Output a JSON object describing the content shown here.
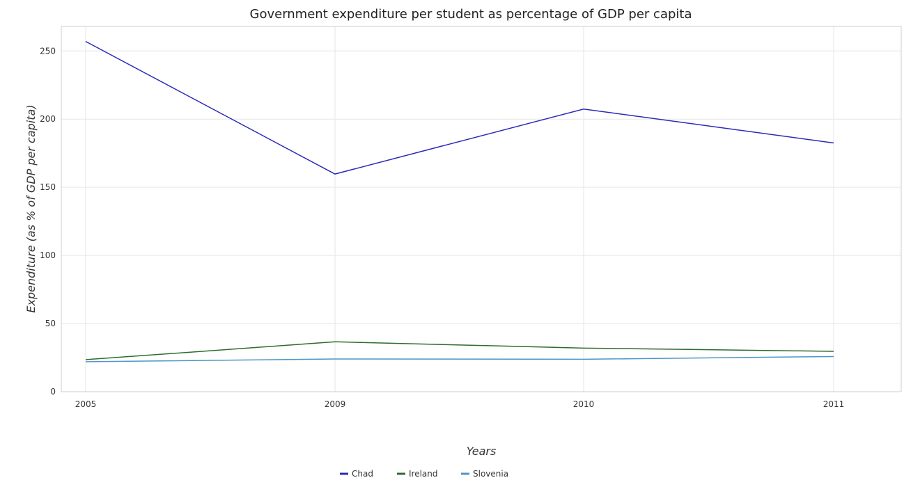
{
  "chart_data": {
    "type": "line",
    "title": "Government expenditure per student as percentage of GDP per capita",
    "xlabel": "Years",
    "ylabel": "Expenditure (as % of GDP per capita)",
    "categories": [
      "2005",
      "2009",
      "2010",
      "2011"
    ],
    "ylim": [
      0,
      268
    ],
    "yticks": [
      0,
      50,
      100,
      150,
      200,
      250
    ],
    "grid": true,
    "legend_position": "bottom",
    "series": [
      {
        "name": "Chad",
        "color": "#2a2ab8",
        "values": [
          257.0,
          159.7,
          207.4,
          182.5
        ]
      },
      {
        "name": "Ireland",
        "color": "#2e6b2e",
        "values": [
          23.5,
          36.6,
          32.0,
          29.6
        ]
      },
      {
        "name": "Slovenia",
        "color": "#4b96c8",
        "values": [
          22.0,
          24.0,
          23.8,
          25.8
        ]
      }
    ]
  }
}
